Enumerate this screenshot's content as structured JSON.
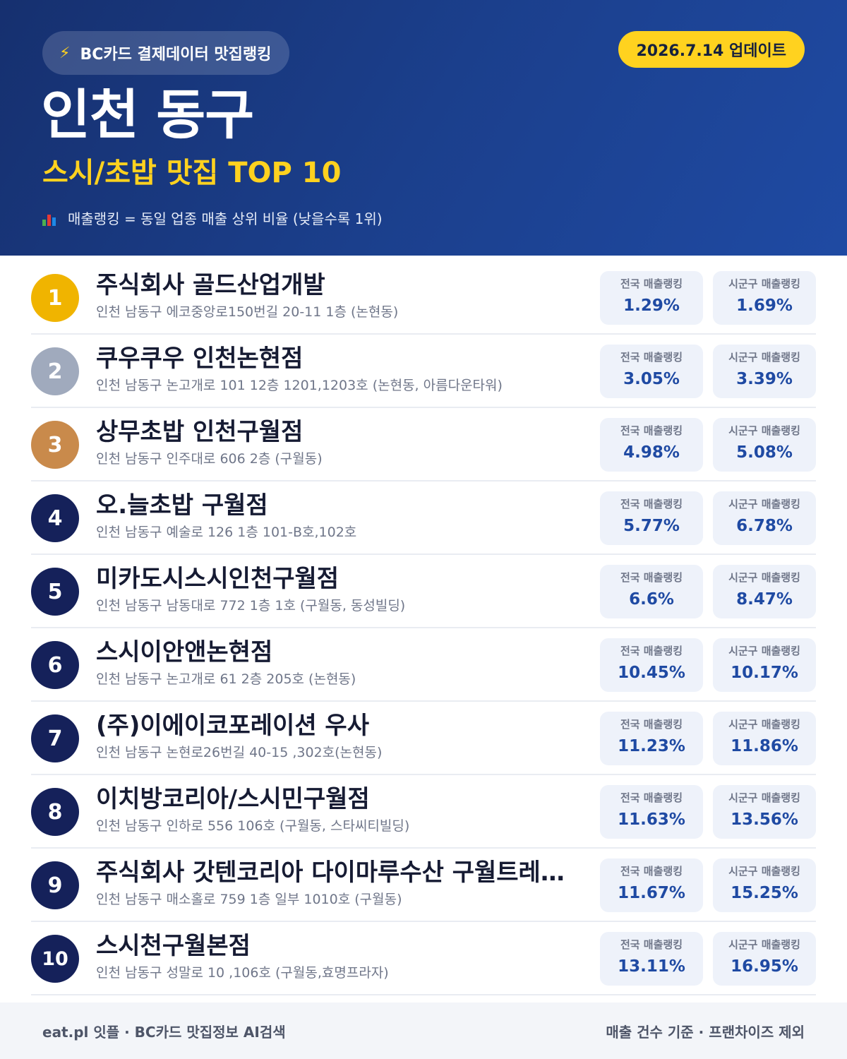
{
  "header": {
    "brand": "BC카드 결제데이터 맛집랭킹",
    "update": "2026.7.14 업데이트",
    "title": "인천 동구",
    "subtitle": "스시/초밥 맛집 TOP 10",
    "note": "매출랭킹 = 동일 업종 매출 상위 비율 (낮을수록 1위)"
  },
  "icons": {
    "brand": "lightning-bolt-icon",
    "note": "bar-chart-icon"
  },
  "colors": {
    "header_start": "#16306f",
    "header_end": "#1f4aa3",
    "accent_yellow": "#ffd21f",
    "gold": "#f0b400",
    "silver": "#a0aabd",
    "bronze": "#c98a4b",
    "navy": "#15215a",
    "value_blue": "#1f4aa3"
  },
  "labels": {
    "national": "전국 매출랭킹",
    "local": "시군구 매출랭킹"
  },
  "restaurants": [
    {
      "rank": "1",
      "name": "주식회사 골드산업개발",
      "address": "인천 남동구 에코중앙로150번길 20-11 1층 (논현동)",
      "national": "1.29%",
      "local": "1.69%"
    },
    {
      "rank": "2",
      "name": "쿠우쿠우 인천논현점",
      "address": "인천 남동구 논고개로 101 12층 1201,1203호 (논현동, 아름다운타워)",
      "national": "3.05%",
      "local": "3.39%"
    },
    {
      "rank": "3",
      "name": "상무초밥 인천구월점",
      "address": "인천 남동구 인주대로 606 2층 (구월동)",
      "national": "4.98%",
      "local": "5.08%"
    },
    {
      "rank": "4",
      "name": "오.늘초밥 구월점",
      "address": "인천 남동구 예술로 126 1층 101-B호,102호",
      "national": "5.77%",
      "local": "6.78%"
    },
    {
      "rank": "5",
      "name": "미카도시스시인천구월점",
      "address": "인천 남동구 남동대로 772 1층 1호 (구월동, 동성빌딩)",
      "national": "6.6%",
      "local": "8.47%"
    },
    {
      "rank": "6",
      "name": "스시이안앤논현점",
      "address": "인천 남동구 논고개로 61 2층 205호 (논현동)",
      "national": "10.45%",
      "local": "10.17%"
    },
    {
      "rank": "7",
      "name": "(주)이에이코포레이션 우사",
      "address": "인천 남동구 논현로26번길 40-15 ,302호(논현동)",
      "national": "11.23%",
      "local": "11.86%"
    },
    {
      "rank": "8",
      "name": "이치방코리아/스시민구월점",
      "address": "인천 남동구 인하로 556 106호 (구월동, 스타씨티빌딩)",
      "national": "11.63%",
      "local": "13.56%"
    },
    {
      "rank": "9",
      "name": "주식회사 갓텐코리아 다이마루수산 구월트레이…",
      "address": "인천 남동구 매소홀로 759 1층 일부 1010호 (구월동)",
      "national": "11.67%",
      "local": "15.25%"
    },
    {
      "rank": "10",
      "name": "스시천구월본점",
      "address": "인천 남동구 성말로 10 ,106호 (구월동,효명프라자)",
      "national": "13.11%",
      "local": "16.95%"
    }
  ],
  "footer": {
    "left": "eat.pl 잇플 · BC카드 맛집정보 AI검색",
    "right": "매출 건수 기준 · 프랜차이즈 제외"
  }
}
